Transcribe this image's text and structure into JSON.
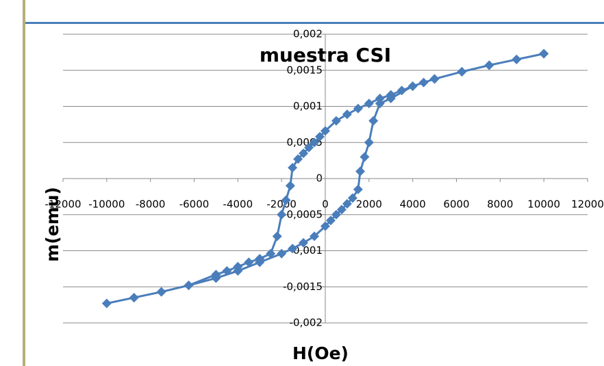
{
  "chart_data": {
    "type": "scatter",
    "title": "muestra CSI",
    "x_label": "H(Oe)",
    "y_label": "m(emu)",
    "x": [
      10000,
      8750,
      7500,
      6250,
      5000,
      4500,
      4000,
      3500,
      3000,
      2500,
      2000,
      1500,
      1000,
      500,
      0,
      -250,
      -500,
      -750,
      -1000,
      -1250,
      -1500,
      -1600,
      -1800,
      -2000,
      -2200,
      -2500,
      -3000,
      -3500,
      -4000,
      -4500,
      -5000,
      -6250,
      -7500,
      -8750,
      -10000,
      -8750,
      -7500,
      -6250,
      -5000,
      -4000,
      -3000,
      -2000,
      -1500,
      -1000,
      -500,
      0,
      250,
      500,
      750,
      1000,
      1250,
      1500,
      1600,
      1800,
      2000,
      2200,
      2500,
      3000,
      4000,
      5000,
      6250,
      7500,
      8750,
      10000
    ],
    "values": [
      0.00173,
      0.00165,
      0.00157,
      0.00148,
      0.00138,
      0.00133,
      0.00128,
      0.00122,
      0.00116,
      0.00111,
      0.00104,
      0.00097,
      0.00089,
      0.0008,
      0.00066,
      0.00058,
      0.0005,
      0.00043,
      0.00035,
      0.00027,
      0.00015,
      -0.0001,
      -0.0003,
      -0.0005,
      -0.0008,
      -0.00104,
      -0.00111,
      -0.00116,
      -0.00122,
      -0.00128,
      -0.00133,
      -0.00148,
      -0.00157,
      -0.00165,
      -0.00173,
      -0.00165,
      -0.00157,
      -0.00148,
      -0.00138,
      -0.00128,
      -0.00116,
      -0.00104,
      -0.00097,
      -0.00089,
      -0.0008,
      -0.00066,
      -0.00058,
      -0.0005,
      -0.00043,
      -0.00035,
      -0.00027,
      -0.00015,
      0.0001,
      0.0003,
      0.0005,
      0.0008,
      0.00104,
      0.00111,
      0.00128,
      0.00138,
      0.00148,
      0.00157,
      0.00165,
      0.00173
    ],
    "color": "#4a7ebb",
    "xlim": [
      -12000,
      12000
    ],
    "xticks": [
      -12000,
      -10000,
      -8000,
      -6000,
      -4000,
      -2000,
      0,
      2000,
      4000,
      6000,
      8000,
      10000,
      12000
    ],
    "ylim": [
      -0.002,
      0.002
    ],
    "yticks": [
      {
        "value": -0.002,
        "label": "-0,002"
      },
      {
        "value": -0.0015,
        "label": "-0,0015"
      },
      {
        "value": -0.001,
        "label": "-0,001"
      },
      {
        "value": -0.0005,
        "label": "-0,0005"
      },
      0,
      {
        "value": 0.0005,
        "label": "0,0005"
      },
      {
        "value": 0.001,
        "label": "0,001"
      },
      {
        "value": 0.0015,
        "label": "0,0015"
      },
      {
        "value": 0.002,
        "label": "0,002"
      }
    ],
    "grid": true
  }
}
